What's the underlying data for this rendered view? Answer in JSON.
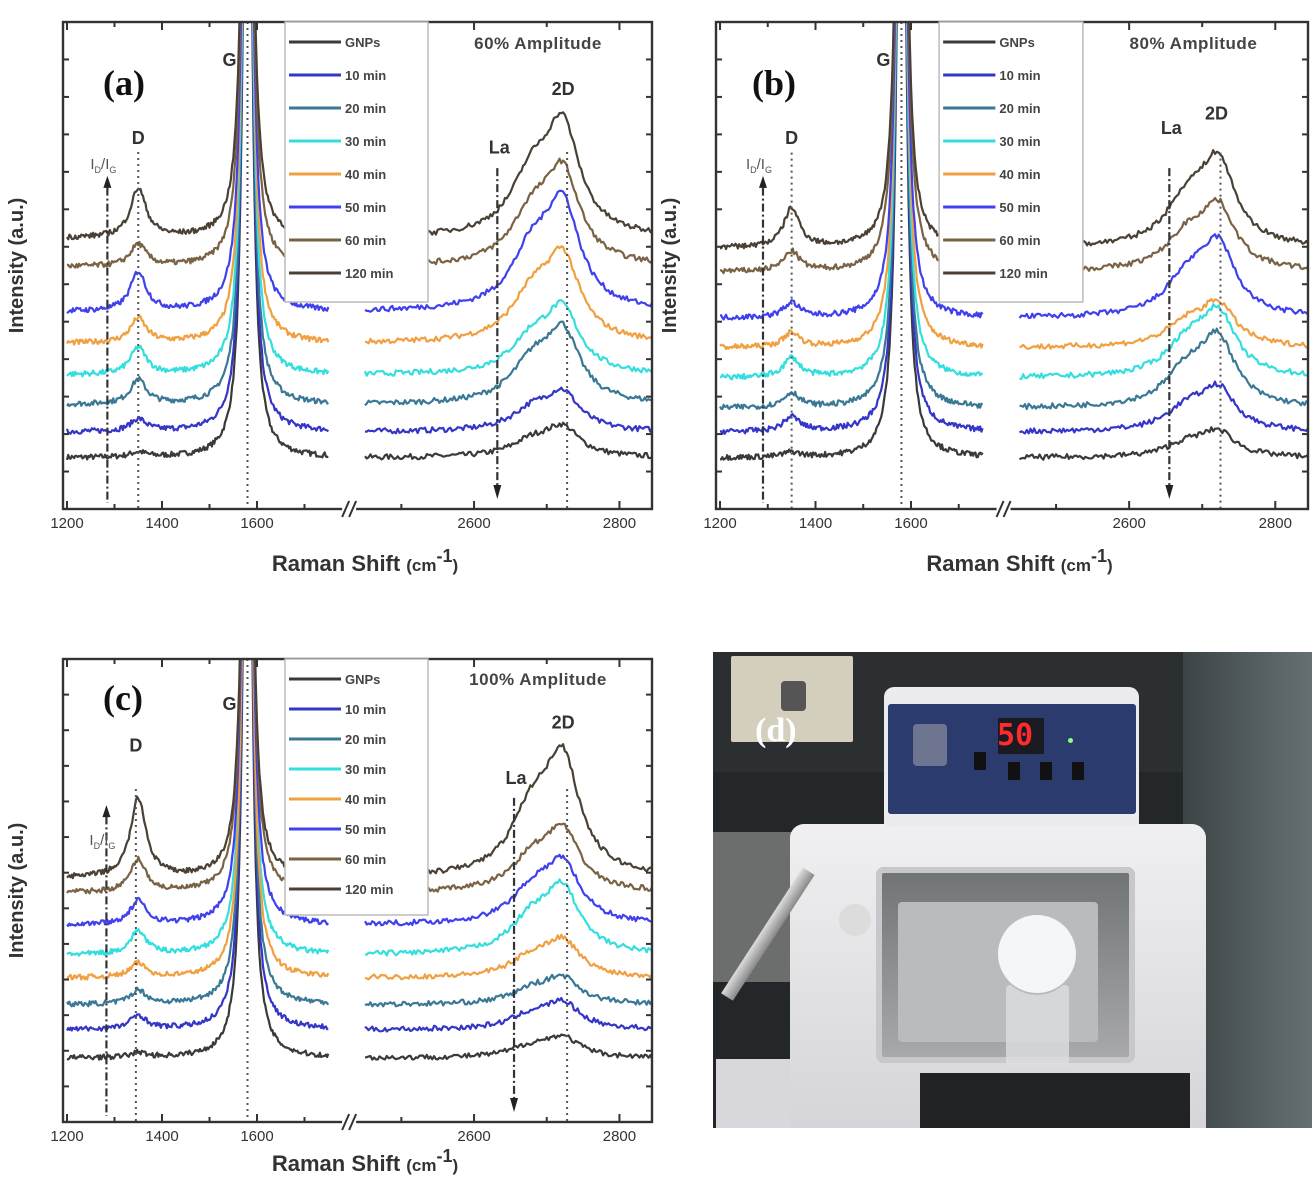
{
  "chart_data": [
    {
      "panel_label": "(a)",
      "type": "line",
      "title": "60% Amplitude",
      "xlabel": {
        "main": "Raman Shift",
        "unit_open": "(cm",
        "unit_sup": "-1",
        "unit_close": ")"
      },
      "ylabel": "Intensity (a.u.)",
      "x_segments": [
        [
          1200,
          1800
        ],
        [
          2450,
          2850
        ]
      ],
      "axis_break": true,
      "xticks": [
        "1200",
        "1400",
        "1600",
        "2600",
        "2800"
      ],
      "ylim": [
        0,
        100
      ],
      "grid": false,
      "legend": {
        "placement": "top-center"
      },
      "annotations": {
        "G": {
          "text": "G",
          "x": 1580
        },
        "D": {
          "text": "D",
          "x": 1350
        },
        "2D": {
          "text": "2D",
          "x": 2728
        },
        "La": {
          "text": "La",
          "x": 2632
        },
        "IdIg": {
          "parts": [
            "I",
            "D",
            "/I",
            "G"
          ],
          "x": 1285
        }
      },
      "series": [
        {
          "name": "GNPs",
          "color": "#3a3a3a",
          "offset": 10.5,
          "D": 1,
          "G": 200,
          "2D": 7
        },
        {
          "name": "10 min",
          "color": "#3535c8",
          "offset": 15.8,
          "D": 2.5,
          "G": 200,
          "2D": 9
        },
        {
          "name": "20 min",
          "color": "#3a7896",
          "offset": 21.4,
          "D": 5,
          "G": 200,
          "2D": 17
        },
        {
          "name": "30 min",
          "color": "#35dede",
          "offset": 27.5,
          "D": 5.5,
          "G": 200,
          "2D": 15
        },
        {
          "name": "40 min",
          "color": "#f0a040",
          "offset": 34,
          "D": 5,
          "G": 200,
          "2D": 20
        },
        {
          "name": "50 min",
          "color": "#4040ee",
          "offset": 40.5,
          "D": 8,
          "G": 200,
          "2D": 25
        },
        {
          "name": "60 min",
          "color": "#7a6244",
          "offset": 49.7,
          "D": 4.5,
          "G": 200,
          "2D": 22
        },
        {
          "name": "120 min",
          "color": "#4a4034",
          "offset": 55.6,
          "D": 10,
          "G": 200,
          "2D": 26
        }
      ]
    },
    {
      "panel_label": "(b)",
      "type": "line",
      "title": "80% Amplitude",
      "xlabel": {
        "main": "Raman Shift",
        "unit_open": "(cm",
        "unit_sup": "-1",
        "unit_close": ")"
      },
      "ylabel": "Intensity (a.u.)",
      "x_segments": [
        [
          1200,
          1800
        ],
        [
          2450,
          2850
        ]
      ],
      "axis_break": true,
      "xticks": [
        "1200",
        "1400",
        "1600",
        "2600",
        "2800"
      ],
      "ylim": [
        0,
        100
      ],
      "grid": false,
      "legend": {
        "placement": "top-center"
      },
      "annotations": {
        "G": {
          "text": "G",
          "x": 1580
        },
        "D": {
          "text": "D",
          "x": 1350
        },
        "2D": {
          "text": "2D",
          "x": 2725
        },
        "La": {
          "text": "La",
          "x": 2655
        },
        "IdIg": {
          "parts": [
            "I",
            "D",
            "/I",
            "G"
          ],
          "x": 1290
        }
      },
      "series": [
        {
          "name": "GNPs",
          "color": "#3a3a3a",
          "offset": 10.5,
          "D": 1,
          "G": 200,
          "2D": 6
        },
        {
          "name": "10 min",
          "color": "#3535c8",
          "offset": 15.8,
          "D": 3,
          "G": 200,
          "2D": 10
        },
        {
          "name": "20 min",
          "color": "#3a7896",
          "offset": 20.7,
          "D": 3,
          "G": 200,
          "2D": 16
        },
        {
          "name": "30 min",
          "color": "#35dede",
          "offset": 26.9,
          "D": 4,
          "G": 200,
          "2D": 15
        },
        {
          "name": "40 min",
          "color": "#f0a040",
          "offset": 33.1,
          "D": 3,
          "G": 200,
          "2D": 10
        },
        {
          "name": "50 min",
          "color": "#4040ee",
          "offset": 39.2,
          "D": 3,
          "G": 200,
          "2D": 17
        },
        {
          "name": "60 min",
          "color": "#7a6244",
          "offset": 48.7,
          "D": 4,
          "G": 200,
          "2D": 15
        },
        {
          "name": "120 min",
          "color": "#4a4034",
          "offset": 53.6,
          "D": 8,
          "G": 200,
          "2D": 20
        }
      ]
    },
    {
      "panel_label": "(c)",
      "type": "line",
      "title": "100% Amplitude",
      "xlabel": {
        "main": "Raman Shift",
        "unit_open": "(cm",
        "unit_sup": "-1",
        "unit_close": ")"
      },
      "ylabel": "Intensity (a.u.)",
      "x_segments": [
        [
          1200,
          1800
        ],
        [
          2450,
          2850
        ]
      ],
      "axis_break": true,
      "xticks": [
        "1200",
        "1400",
        "1600",
        "2600",
        "2800"
      ],
      "ylim": [
        0,
        100
      ],
      "grid": false,
      "legend": {
        "placement": "top-center"
      },
      "annotations": {
        "G": {
          "text": "G",
          "x": 1580
        },
        "D": {
          "text": "D",
          "x": 1345
        },
        "2D": {
          "text": "2D",
          "x": 2728
        },
        "La": {
          "text": "La",
          "x": 2655
        },
        "IdIg": {
          "parts": [
            "I",
            "D",
            "/I",
            "G"
          ],
          "x": 1283
        }
      },
      "series": [
        {
          "name": "GNPs",
          "color": "#3a3a3a",
          "offset": 13.8,
          "D": 1,
          "G": 200,
          "2D": 5
        },
        {
          "name": "10 min",
          "color": "#3535c8",
          "offset": 19.9,
          "D": 3,
          "G": 200,
          "2D": 6.5
        },
        {
          "name": "20 min",
          "color": "#3a7896",
          "offset": 25.3,
          "D": 3,
          "G": 200,
          "2D": 6.5
        },
        {
          "name": "30 min",
          "color": "#35dede",
          "offset": 36.1,
          "D": 5,
          "G": 200,
          "2D": 16
        },
        {
          "name": "40 min",
          "color": "#f0a040",
          "offset": 31.1,
          "D": 3,
          "G": 200,
          "2D": 9
        },
        {
          "name": "50 min",
          "color": "#4040ee",
          "offset": 42.6,
          "D": 5,
          "G": 200,
          "2D": 15
        },
        {
          "name": "60 min",
          "color": "#7a6244",
          "offset": 49.5,
          "D": 7,
          "G": 200,
          "2D": 15
        },
        {
          "name": "120 min",
          "color": "#4a4034",
          "offset": 52.7,
          "D": 17,
          "G": 200,
          "2D": 29
        }
      ]
    }
  ],
  "photo": {
    "panel_label": "(d)",
    "display_value": "50"
  }
}
